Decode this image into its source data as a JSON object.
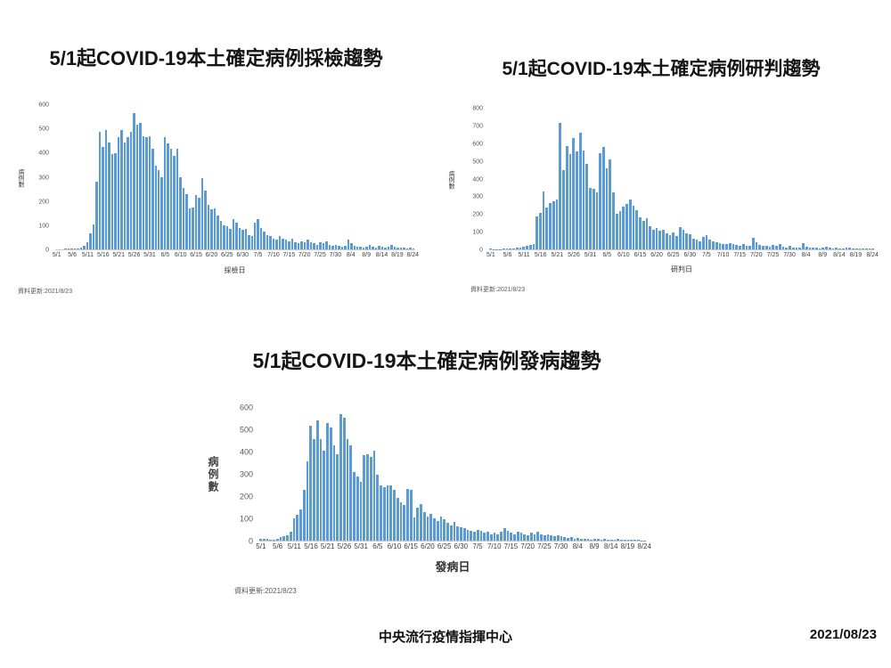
{
  "slide": {
    "footer_org": "中央流行疫情指揮中心",
    "footer_date": "2021/08/23"
  },
  "colors": {
    "bar": "#5B9BD5",
    "axis": "#C9C9C9",
    "tick_text": "#595959",
    "title_text": "#151515"
  },
  "chart_data": [
    {
      "type": "bar",
      "title": "5/1起COVID-19本土確定病例採檢趨勢",
      "xlabel": "採檢日",
      "ylabel": "病例數",
      "update_note": "資料更新:2021/8/23",
      "ylim": [
        0,
        600
      ],
      "ytick_step": 100,
      "grid": false,
      "legend": false,
      "tick_labels": [
        "5/1",
        "5/6",
        "5/11",
        "5/16",
        "5/21",
        "5/26",
        "5/31",
        "6/5",
        "6/10",
        "6/15",
        "6/20",
        "6/25",
        "6/30",
        "7/5",
        "7/10",
        "7/15",
        "7/20",
        "7/25",
        "7/30",
        "8/4",
        "8/9",
        "8/14",
        "8/19",
        "8/24"
      ],
      "x": [
        "5/1",
        "5/2",
        "5/3",
        "5/4",
        "5/5",
        "5/6",
        "5/7",
        "5/8",
        "5/9",
        "5/10",
        "5/11",
        "5/12",
        "5/13",
        "5/14",
        "5/15",
        "5/16",
        "5/17",
        "5/18",
        "5/19",
        "5/20",
        "5/21",
        "5/22",
        "5/23",
        "5/24",
        "5/25",
        "5/26",
        "5/27",
        "5/28",
        "5/29",
        "5/30",
        "5/31",
        "6/1",
        "6/2",
        "6/3",
        "6/4",
        "6/5",
        "6/6",
        "6/7",
        "6/8",
        "6/9",
        "6/10",
        "6/11",
        "6/12",
        "6/13",
        "6/14",
        "6/15",
        "6/16",
        "6/17",
        "6/18",
        "6/19",
        "6/20",
        "6/21",
        "6/22",
        "6/23",
        "6/24",
        "6/25",
        "6/26",
        "6/27",
        "6/28",
        "6/29",
        "6/30",
        "7/1",
        "7/2",
        "7/3",
        "7/4",
        "7/5",
        "7/6",
        "7/7",
        "7/8",
        "7/9",
        "7/10",
        "7/11",
        "7/12",
        "7/13",
        "7/14",
        "7/15",
        "7/16",
        "7/17",
        "7/18",
        "7/19",
        "7/20",
        "7/21",
        "7/22",
        "7/23",
        "7/24",
        "7/25",
        "7/26",
        "7/27",
        "7/28",
        "7/29",
        "7/30",
        "7/31",
        "8/1",
        "8/2",
        "8/3",
        "8/4",
        "8/5",
        "8/6",
        "8/7",
        "8/8",
        "8/9",
        "8/10",
        "8/11",
        "8/12",
        "8/13",
        "8/14",
        "8/15",
        "8/16",
        "8/17",
        "8/18",
        "8/19",
        "8/20",
        "8/21",
        "8/22",
        "8/23",
        "8/24"
      ],
      "values": [
        0,
        0,
        0,
        2,
        2,
        3,
        3,
        5,
        8,
        15,
        30,
        65,
        105,
        280,
        490,
        425,
        495,
        445,
        395,
        400,
        465,
        495,
        445,
        465,
        490,
        565,
        520,
        525,
        470,
        465,
        470,
        420,
        350,
        330,
        300,
        465,
        440,
        420,
        390,
        420,
        300,
        255,
        230,
        170,
        175,
        225,
        215,
        295,
        245,
        185,
        165,
        170,
        140,
        120,
        100,
        95,
        85,
        125,
        110,
        90,
        80,
        85,
        60,
        55,
        110,
        125,
        90,
        75,
        60,
        55,
        45,
        40,
        55,
        45,
        40,
        35,
        45,
        30,
        25,
        35,
        30,
        40,
        30,
        25,
        20,
        30,
        25,
        35,
        20,
        15,
        20,
        15,
        12,
        15,
        40,
        25,
        15,
        10,
        10,
        8,
        12,
        20,
        12,
        8,
        15,
        10,
        6,
        10,
        18,
        10,
        6,
        8,
        6,
        5,
        8,
        4
      ]
    },
    {
      "type": "bar",
      "title": "5/1起COVID-19本土確定病例研判趨勢",
      "xlabel": "研判日",
      "ylabel": "病例數",
      "update_note": "資料更新:2021/8/23",
      "ylim": [
        0,
        800
      ],
      "ytick_step": 100,
      "grid": false,
      "legend": false,
      "tick_labels": [
        "5/1",
        "5/6",
        "5/11",
        "5/16",
        "5/21",
        "5/26",
        "5/31",
        "6/5",
        "6/10",
        "6/15",
        "6/20",
        "6/25",
        "6/30",
        "7/5",
        "7/10",
        "7/15",
        "7/20",
        "7/25",
        "7/30",
        "8/4",
        "8/9",
        "8/14",
        "8/19",
        "8/24"
      ],
      "x": [
        "5/1",
        "5/2",
        "5/3",
        "5/4",
        "5/5",
        "5/6",
        "5/7",
        "5/8",
        "5/9",
        "5/10",
        "5/11",
        "5/12",
        "5/13",
        "5/14",
        "5/15",
        "5/16",
        "5/17",
        "5/18",
        "5/19",
        "5/20",
        "5/21",
        "5/22",
        "5/23",
        "5/24",
        "5/25",
        "5/26",
        "5/27",
        "5/28",
        "5/29",
        "5/30",
        "5/31",
        "6/1",
        "6/2",
        "6/3",
        "6/4",
        "6/5",
        "6/6",
        "6/7",
        "6/8",
        "6/9",
        "6/10",
        "6/11",
        "6/12",
        "6/13",
        "6/14",
        "6/15",
        "6/16",
        "6/17",
        "6/18",
        "6/19",
        "6/20",
        "6/21",
        "6/22",
        "6/23",
        "6/24",
        "6/25",
        "6/26",
        "6/27",
        "6/28",
        "6/29",
        "6/30",
        "7/1",
        "7/2",
        "7/3",
        "7/4",
        "7/5",
        "7/6",
        "7/7",
        "7/8",
        "7/9",
        "7/10",
        "7/11",
        "7/12",
        "7/13",
        "7/14",
        "7/15",
        "7/16",
        "7/17",
        "7/18",
        "7/19",
        "7/20",
        "7/21",
        "7/22",
        "7/23",
        "7/24",
        "7/25",
        "7/26",
        "7/27",
        "7/28",
        "7/29",
        "7/30",
        "7/31",
        "8/1",
        "8/2",
        "8/3",
        "8/4",
        "8/5",
        "8/6",
        "8/7",
        "8/8",
        "8/9",
        "8/10",
        "8/11",
        "8/12",
        "8/13",
        "8/14",
        "8/15",
        "8/16",
        "8/17",
        "8/18",
        "8/19",
        "8/20",
        "8/21",
        "8/22",
        "8/23",
        "8/24"
      ],
      "values": [
        5,
        2,
        2,
        2,
        3,
        3,
        5,
        5,
        8,
        10,
        15,
        20,
        25,
        30,
        185,
        210,
        330,
        240,
        265,
        275,
        285,
        720,
        450,
        585,
        540,
        635,
        555,
        665,
        560,
        485,
        350,
        345,
        325,
        545,
        580,
        460,
        510,
        325,
        205,
        220,
        245,
        260,
        285,
        250,
        225,
        180,
        160,
        175,
        130,
        110,
        120,
        105,
        110,
        90,
        80,
        95,
        75,
        125,
        110,
        90,
        85,
        60,
        55,
        45,
        70,
        80,
        55,
        45,
        40,
        35,
        30,
        30,
        35,
        28,
        25,
        22,
        30,
        20,
        18,
        65,
        40,
        25,
        22,
        18,
        15,
        25,
        18,
        28,
        15,
        12,
        18,
        12,
        10,
        12,
        35,
        15,
        10,
        8,
        8,
        6,
        10,
        15,
        8,
        6,
        10,
        6,
        5,
        8,
        12,
        6,
        4,
        6,
        4,
        5,
        4,
        3
      ]
    },
    {
      "type": "bar",
      "title": "5/1起COVID-19本土確定病例發病趨勢",
      "xlabel": "發病日",
      "ylabel": "病例數",
      "update_note": "資料更新:2021/8/23",
      "ylim": [
        0,
        600
      ],
      "ytick_step": 100,
      "grid": false,
      "legend": false,
      "tick_labels": [
        "5/1",
        "5/6",
        "5/11",
        "5/16",
        "5/21",
        "5/26",
        "5/31",
        "6/5",
        "6/10",
        "6/15",
        "6/20",
        "6/25",
        "6/30",
        "7/5",
        "7/10",
        "7/15",
        "7/20",
        "7/25",
        "7/30",
        "8/4",
        "8/9",
        "8/14",
        "8/19",
        "8/24"
      ],
      "x": [
        "5/1",
        "5/2",
        "5/3",
        "5/4",
        "5/5",
        "5/6",
        "5/7",
        "5/8",
        "5/9",
        "5/10",
        "5/11",
        "5/12",
        "5/13",
        "5/14",
        "5/15",
        "5/16",
        "5/17",
        "5/18",
        "5/19",
        "5/20",
        "5/21",
        "5/22",
        "5/23",
        "5/24",
        "5/25",
        "5/26",
        "5/27",
        "5/28",
        "5/29",
        "5/30",
        "5/31",
        "6/1",
        "6/2",
        "6/3",
        "6/4",
        "6/5",
        "6/6",
        "6/7",
        "6/8",
        "6/9",
        "6/10",
        "6/11",
        "6/12",
        "6/13",
        "6/14",
        "6/15",
        "6/16",
        "6/17",
        "6/18",
        "6/19",
        "6/20",
        "6/21",
        "6/22",
        "6/23",
        "6/24",
        "6/25",
        "6/26",
        "6/27",
        "6/28",
        "6/29",
        "6/30",
        "7/1",
        "7/2",
        "7/3",
        "7/4",
        "7/5",
        "7/6",
        "7/7",
        "7/8",
        "7/9",
        "7/10",
        "7/11",
        "7/12",
        "7/13",
        "7/14",
        "7/15",
        "7/16",
        "7/17",
        "7/18",
        "7/19",
        "7/20",
        "7/21",
        "7/22",
        "7/23",
        "7/24",
        "7/25",
        "7/26",
        "7/27",
        "7/28",
        "7/29",
        "7/30",
        "7/31",
        "8/1",
        "8/2",
        "8/3",
        "8/4",
        "8/5",
        "8/6",
        "8/7",
        "8/8",
        "8/9",
        "8/10",
        "8/11",
        "8/12",
        "8/13",
        "8/14",
        "8/15",
        "8/16",
        "8/17",
        "8/18",
        "8/19",
        "8/20",
        "8/21",
        "8/22",
        "8/23",
        "8/24"
      ],
      "values": [
        10,
        8,
        8,
        5,
        3,
        8,
        15,
        20,
        25,
        40,
        100,
        115,
        140,
        230,
        360,
        520,
        460,
        545,
        460,
        405,
        530,
        510,
        430,
        390,
        570,
        555,
        460,
        430,
        310,
        290,
        265,
        385,
        390,
        380,
        405,
        300,
        250,
        240,
        250,
        250,
        230,
        195,
        175,
        160,
        235,
        230,
        105,
        150,
        165,
        130,
        110,
        120,
        100,
        90,
        110,
        95,
        80,
        70,
        85,
        65,
        60,
        55,
        50,
        45,
        40,
        50,
        45,
        35,
        40,
        30,
        35,
        30,
        40,
        55,
        45,
        35,
        30,
        40,
        35,
        30,
        25,
        35,
        30,
        40,
        30,
        25,
        30,
        25,
        20,
        25,
        20,
        15,
        12,
        15,
        10,
        12,
        8,
        10,
        8,
        6,
        8,
        10,
        6,
        8,
        5,
        6,
        4,
        8,
        5,
        4,
        5,
        4,
        3,
        3,
        2,
        2
      ]
    }
  ]
}
